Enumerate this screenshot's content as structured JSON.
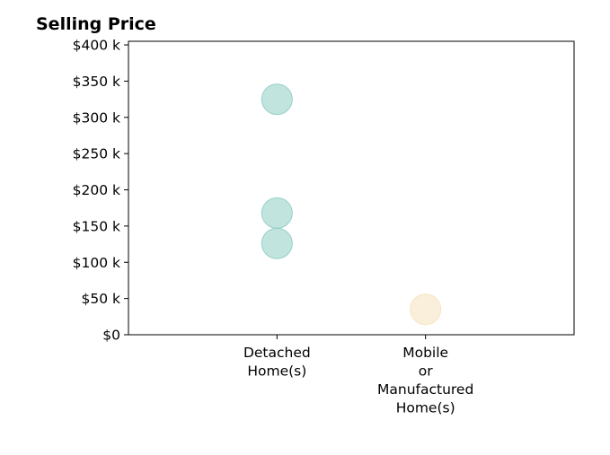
{
  "chart_data": {
    "type": "scatter",
    "title": "Selling Price",
    "xlabel": "",
    "ylabel": "",
    "categories": [
      [
        "Detached",
        "Home(s)"
      ],
      [
        "Mobile",
        "or",
        "Manufactured",
        "Home(s)"
      ]
    ],
    "xlim": [
      -1,
      2
    ],
    "ylim": [
      0,
      405000
    ],
    "yticks": [
      0,
      50000,
      100000,
      150000,
      200000,
      250000,
      300000,
      350000,
      400000
    ],
    "ytick_labels": [
      "$0",
      "$50 k",
      "$100 k",
      "$150 k",
      "$200 k",
      "$250 k",
      "$300 k",
      "$350 k",
      "$400 k"
    ],
    "grid": false,
    "legend": "none",
    "series": [
      {
        "category": 0,
        "color": "#8ecdc5",
        "points": [
          325000,
          168000,
          126000
        ]
      },
      {
        "category": 1,
        "color": "#f5e2bb",
        "points": [
          35000
        ]
      }
    ]
  }
}
